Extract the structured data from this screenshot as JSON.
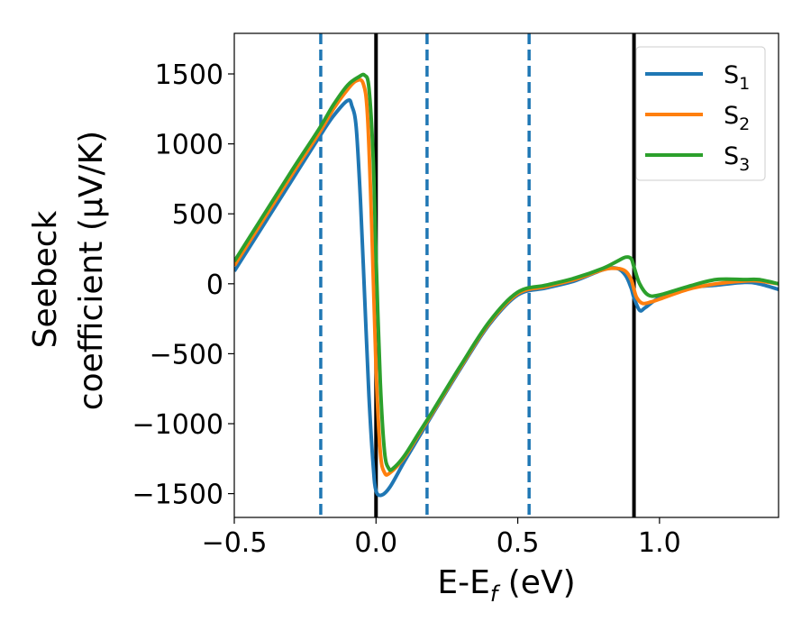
{
  "chart_data": {
    "type": "line",
    "title": "",
    "xlabel": "E-E_f (eV)",
    "xlabel_parts": {
      "main": "E-E",
      "sub": "f",
      "rest": " (eV)"
    },
    "ylabel_line1": "Seebeck",
    "ylabel_line2": "coefficient  (μV/K)",
    "xlim": [
      -0.5,
      1.42
    ],
    "ylim": [
      -1670,
      1790
    ],
    "xticks": [
      -0.5,
      0.0,
      0.5,
      1.0
    ],
    "xtick_labels": [
      "−0.5",
      "0.0",
      "0.5",
      "1.0"
    ],
    "yticks": [
      -1500,
      -1000,
      -500,
      0,
      500,
      1000,
      1500
    ],
    "ytick_labels": [
      "−1500",
      "−1000",
      "−500",
      "0",
      "500",
      "1000",
      "1500"
    ],
    "grid": false,
    "legend_position": "top-right",
    "vlines": [
      {
        "x": 0.0,
        "style": "solid",
        "color": "#000000"
      },
      {
        "x": 0.91,
        "style": "solid",
        "color": "#000000"
      },
      {
        "x": -0.195,
        "style": "dashed",
        "color": "#1f77b4"
      },
      {
        "x": 0.18,
        "style": "dashed",
        "color": "#1f77b4"
      },
      {
        "x": 0.54,
        "style": "dashed",
        "color": "#1f77b4"
      }
    ],
    "series": [
      {
        "name": "S1",
        "label_main": "S",
        "label_sub": "1",
        "color": "#1f77b4",
        "x": [
          -0.5,
          -0.4,
          -0.3,
          -0.2,
          -0.15,
          -0.1,
          -0.085,
          -0.07,
          -0.055,
          -0.04,
          -0.025,
          -0.01,
          0.0,
          0.02,
          0.05,
          0.1,
          0.15,
          0.2,
          0.3,
          0.4,
          0.5,
          0.6,
          0.7,
          0.8,
          0.85,
          0.88,
          0.9,
          0.91,
          0.93,
          0.95,
          1.0,
          1.1,
          1.2,
          1.3,
          1.35,
          1.42
        ],
        "y": [
          90,
          410,
          730,
          1050,
          1200,
          1310,
          1270,
          1120,
          600,
          -100,
          -800,
          -1300,
          -1480,
          -1510,
          -1450,
          -1270,
          -1100,
          -930,
          -600,
          -290,
          -80,
          -30,
          20,
          100,
          110,
          60,
          -30,
          -100,
          -190,
          -170,
          -100,
          -30,
          -10,
          10,
          0,
          -40
        ]
      },
      {
        "name": "S2",
        "label_main": "S",
        "label_sub": "2",
        "color": "#ff7f0e",
        "x": [
          -0.5,
          -0.4,
          -0.3,
          -0.2,
          -0.15,
          -0.1,
          -0.07,
          -0.045,
          -0.03,
          -0.015,
          0.0,
          0.015,
          0.03,
          0.05,
          0.1,
          0.15,
          0.2,
          0.3,
          0.4,
          0.5,
          0.6,
          0.7,
          0.8,
          0.85,
          0.88,
          0.9,
          0.91,
          0.92,
          0.94,
          0.97,
          1.0,
          1.1,
          1.2,
          1.3,
          1.35,
          1.42
        ],
        "y": [
          130,
          450,
          770,
          1080,
          1250,
          1390,
          1450,
          1430,
          1200,
          400,
          -600,
          -1200,
          -1350,
          -1350,
          -1240,
          -1080,
          -920,
          -590,
          -280,
          -70,
          -20,
          30,
          100,
          110,
          90,
          30,
          -40,
          -100,
          -140,
          -130,
          -110,
          -40,
          0,
          20,
          20,
          0
        ]
      },
      {
        "name": "S3",
        "label_main": "S",
        "label_sub": "3",
        "color": "#2ca02c",
        "x": [
          -0.5,
          -0.4,
          -0.3,
          -0.2,
          -0.15,
          -0.1,
          -0.06,
          -0.04,
          -0.025,
          -0.01,
          0.0,
          0.015,
          0.03,
          0.045,
          0.06,
          0.1,
          0.15,
          0.2,
          0.3,
          0.4,
          0.5,
          0.6,
          0.7,
          0.8,
          0.85,
          0.88,
          0.9,
          0.91,
          0.93,
          0.96,
          1.0,
          1.1,
          1.2,
          1.3,
          1.35,
          1.42
        ],
        "y": [
          160,
          480,
          800,
          1110,
          1280,
          1420,
          1480,
          1490,
          1400,
          900,
          200,
          -700,
          -1200,
          -1320,
          -1320,
          -1230,
          -1070,
          -910,
          -580,
          -270,
          -60,
          -10,
          40,
          110,
          160,
          190,
          180,
          120,
          0,
          -80,
          -80,
          -20,
          30,
          30,
          30,
          0
        ]
      }
    ]
  }
}
